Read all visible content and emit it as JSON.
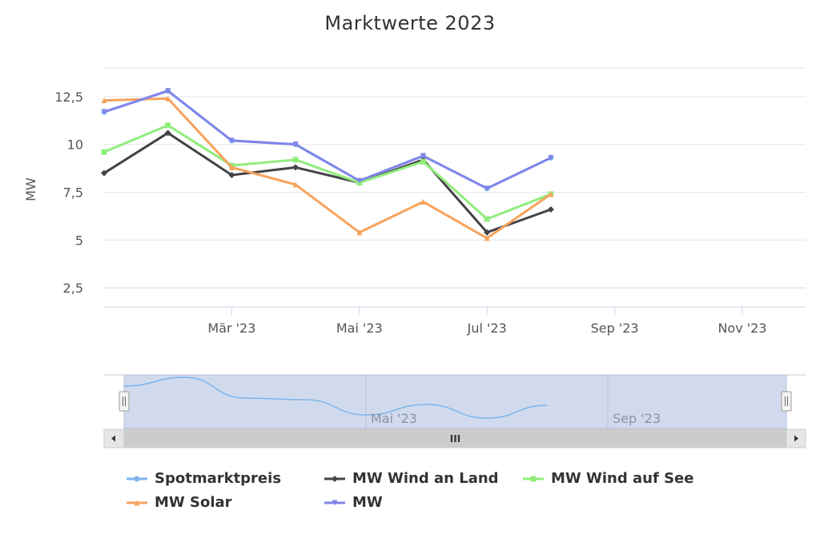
{
  "chart_data": {
    "type": "line",
    "title": "Marktwerte 2023",
    "ylabel": "MW",
    "xlabel": "",
    "x": [
      "2023-01",
      "2023-02",
      "2023-03",
      "2023-04",
      "2023-05",
      "2023-06",
      "2023-07",
      "2023-08"
    ],
    "xlim": [
      "2023-01",
      "2023-12"
    ],
    "ylim": [
      1.5,
      14
    ],
    "yticks": [
      "2,5",
      "5",
      "7,5",
      "10",
      "12,5"
    ],
    "ytick_values": [
      2.5,
      5,
      7.5,
      10,
      12.5
    ],
    "xticks": [
      "Mär '23",
      "Mai '23",
      "Jul '23",
      "Sep '23",
      "Nov '23"
    ],
    "xtick_values": [
      "2023-03",
      "2023-05",
      "2023-07",
      "2023-09",
      "2023-11"
    ],
    "grid": true,
    "legend_position": "bottom",
    "series": [
      {
        "name": "Spotmarktpreis",
        "color": "#7cb5ec",
        "marker": "circle",
        "values": [
          11.7,
          12.8,
          10.2,
          10.0,
          8.1,
          9.4,
          7.7,
          9.3
        ]
      },
      {
        "name": "MW Wind an Land",
        "color": "#434348",
        "marker": "diamond",
        "values": [
          8.5,
          10.6,
          8.4,
          8.8,
          8.0,
          9.2,
          5.4,
          6.6
        ]
      },
      {
        "name": "MW Wind auf See",
        "color": "#90ed7d",
        "marker": "square",
        "values": [
          9.6,
          11.0,
          8.9,
          9.2,
          8.0,
          9.1,
          6.1,
          7.4
        ]
      },
      {
        "name": "MW Solar",
        "color": "#f7a35c",
        "marker": "triangle",
        "values": [
          12.3,
          12.4,
          8.8,
          7.9,
          5.4,
          7.0,
          5.1,
          7.4
        ]
      },
      {
        "name": "MW",
        "color": "#8085e9",
        "marker": "triangle-down",
        "values": [
          11.7,
          12.8,
          10.2,
          10.0,
          8.1,
          9.4,
          7.7,
          9.3
        ]
      }
    ],
    "navigator": {
      "series": "Spotmarktpreis",
      "labels": [
        "Mai '23",
        "Sep '23"
      ],
      "label_values": [
        "2023-05",
        "2023-09"
      ],
      "scrollbar_grip": "III"
    }
  }
}
